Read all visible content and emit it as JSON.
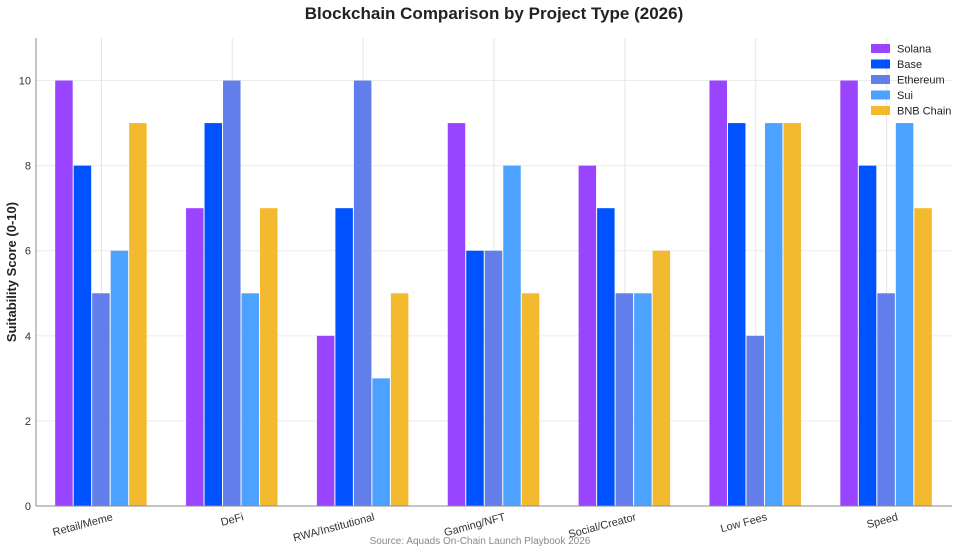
{
  "chart_data": {
    "type": "bar",
    "title": "Blockchain Comparison by Project Type (2026)",
    "ylabel": "Suitability Score (0-10)",
    "xlabel": "",
    "ylim": [
      0,
      11
    ],
    "yticks": [
      0,
      2,
      4,
      6,
      8,
      10
    ],
    "grid": true,
    "legend_position": "top-right",
    "source": "Source: Aquads On-Chain Launch Playbook 2026",
    "categories": [
      "Retail/Meme",
      "DeFi",
      "RWA/Institutional",
      "Gaming/NFT",
      "Social/Creator",
      "Low Fees",
      "Speed"
    ],
    "series": [
      {
        "name": "Solana",
        "color": "#9945FF",
        "values": [
          10,
          7,
          4,
          9,
          8,
          10,
          10
        ]
      },
      {
        "name": "Base",
        "color": "#0052FF",
        "values": [
          8,
          9,
          7,
          6,
          7,
          9,
          8
        ]
      },
      {
        "name": "Ethereum",
        "color": "#627EEA",
        "values": [
          5,
          10,
          10,
          6,
          5,
          4,
          5
        ]
      },
      {
        "name": "Sui",
        "color": "#4DA2FF",
        "values": [
          6,
          5,
          3,
          8,
          5,
          9,
          9
        ]
      },
      {
        "name": "BNB Chain",
        "color": "#F3BA2F",
        "values": [
          9,
          7,
          5,
          5,
          6,
          9,
          7
        ]
      }
    ]
  }
}
